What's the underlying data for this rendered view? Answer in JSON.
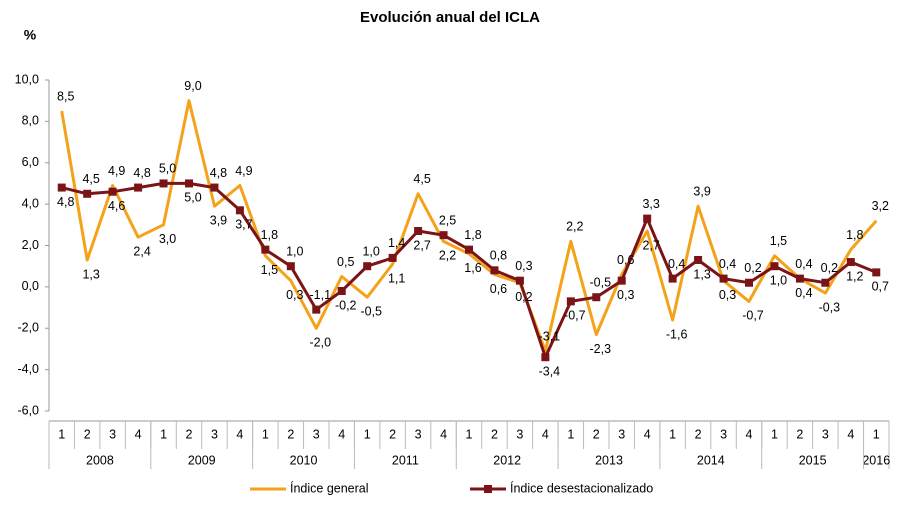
{
  "chart_data": {
    "type": "line",
    "title": "Evolución anual del ICLA",
    "ylabel": "%",
    "categories": [
      "1",
      "2",
      "3",
      "4",
      "1",
      "2",
      "3",
      "4",
      "1",
      "2",
      "3",
      "4",
      "1",
      "2",
      "3",
      "4",
      "1",
      "2",
      "3",
      "4",
      "1",
      "2",
      "3",
      "4",
      "1",
      "2",
      "3",
      "4",
      "1",
      "2",
      "3",
      "4",
      "1"
    ],
    "year_groups": [
      "2008",
      "2009",
      "2010",
      "2011",
      "2012",
      "2013",
      "2014",
      "2015",
      "2016"
    ],
    "ylim": [
      -6,
      10
    ],
    "yticks": [
      {
        "value": -6,
        "label": "-6,0"
      },
      {
        "value": -4,
        "label": "-4,0"
      },
      {
        "value": -2,
        "label": "-2,0"
      },
      {
        "value": 0,
        "label": "0,0"
      },
      {
        "value": 2,
        "label": "2,0"
      },
      {
        "value": 4,
        "label": "4,0"
      },
      {
        "value": 6,
        "label": "6,0"
      },
      {
        "value": 8,
        "label": "8,0"
      },
      {
        "value": 10,
        "label": "10,0"
      }
    ],
    "grid": false,
    "series": [
      {
        "name": "Índice general",
        "color": "#f5a21b",
        "marker": "none",
        "values": [
          8.5,
          1.3,
          4.9,
          2.4,
          3.0,
          9.0,
          3.9,
          4.9,
          1.5,
          0.3,
          -2.0,
          0.5,
          -0.5,
          1.1,
          4.5,
          2.2,
          1.6,
          0.6,
          0.2,
          -3.1,
          2.2,
          -2.3,
          0.6,
          2.7,
          -1.6,
          3.9,
          0.3,
          -0.7,
          1.5,
          0.4,
          -0.3,
          1.8,
          3.2
        ],
        "value_labels": [
          "8,5",
          "1,3",
          "4,9",
          "2,4",
          "3,0",
          "9,0",
          "3,9",
          "4,9",
          "1,5",
          "0,3",
          "-2,0",
          "0,5",
          "-0,5",
          "1,1",
          "4,5",
          "2,2",
          "1,6",
          "0,6",
          "0,2",
          "-3,1",
          "2,2",
          "-2,3",
          "0,6",
          "2,7",
          "-1,6",
          "3,9",
          "0,3",
          "-0,7",
          "1,5",
          "0,4",
          "-0,3",
          "1,8",
          "3,2"
        ]
      },
      {
        "name": "Índice desestacionalizado",
        "color": "#7b1416",
        "marker": "square",
        "values": [
          4.8,
          4.5,
          4.6,
          4.8,
          5.0,
          5.0,
          4.8,
          3.7,
          1.8,
          1.0,
          -1.1,
          -0.2,
          1.0,
          1.4,
          2.7,
          2.5,
          1.8,
          0.8,
          0.3,
          -3.4,
          -0.7,
          -0.5,
          0.3,
          3.3,
          0.4,
          1.3,
          0.4,
          0.2,
          1.0,
          0.4,
          0.2,
          1.2,
          0.7
        ],
        "value_labels": [
          "4,8",
          "4,5",
          "4,6",
          "4,8",
          "5,0",
          "5,0",
          "4,8",
          "3,7",
          "1,8",
          "1,0",
          "-1,1",
          "-0,2",
          "1,0",
          "1,4",
          "2,7",
          "2,5",
          "1,8",
          "0,8",
          "0,3",
          "-3,4",
          "-0,7",
          "-0,5",
          "0,3",
          "3,3",
          "0,4",
          "1,3",
          "0,4",
          "0,2",
          "1,0",
          "0,4",
          "0,2",
          "1,2",
          "0,7"
        ]
      }
    ],
    "legend": "bottom"
  }
}
